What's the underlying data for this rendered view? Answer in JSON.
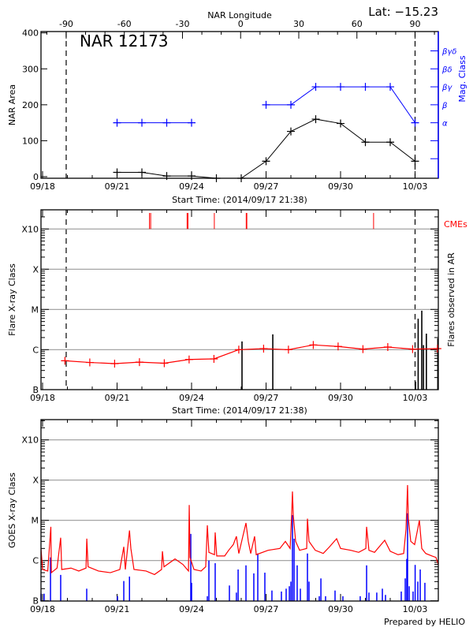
{
  "header": {
    "lat_label": "Lat: −15.23",
    "prepared_by": "Prepared by HELIO"
  },
  "colors": {
    "area": "#000000",
    "mag_class": "#0000ff",
    "flare_mean": "#ff0000",
    "flares": "#000000",
    "cme": "#ff0000",
    "goes_long": "#ff0000",
    "goes_short": "#0000ff",
    "grid": "#999999"
  },
  "chart_data": [
    {
      "type": "line",
      "title": "NAR 12173",
      "xlabel": "Start Time: (2014/09/17 21:38)",
      "x2label": "NAR Longitude",
      "ylabel": "NAR Area",
      "y2label": "Mag. Class",
      "xlim": [
        "2014-09-17 21:38",
        "2014-10-03 22:30"
      ],
      "xticks": [
        {
          "date": "2014-09-18 00:00",
          "label": "09/18"
        },
        {
          "date": "2014-09-21 00:00",
          "label": "09/21"
        },
        {
          "date": "2014-09-24 00:00",
          "label": "09/24"
        },
        {
          "date": "2014-09-27 00:00",
          "label": "09/27"
        },
        {
          "date": "2014-09-30 00:00",
          "label": "09/30"
        },
        {
          "date": "2014-10-03 00:00",
          "label": "10/03"
        }
      ],
      "x2lim": [
        -103,
        102
      ],
      "x2ticks": [
        -90,
        -60,
        -30,
        0,
        30,
        60,
        90
      ],
      "limb_longitudes": [
        -90,
        90
      ],
      "ylim": [
        0,
        400
      ],
      "yticks": [
        0,
        100,
        200,
        300,
        400
      ],
      "y2ticks": [
        {
          "value": 50,
          "label": ""
        },
        {
          "value": 100,
          "label": ""
        },
        {
          "value": 150,
          "label": "α"
        },
        {
          "value": 200,
          "label": "β"
        },
        {
          "value": 250,
          "label": "βγ"
        },
        {
          "value": 300,
          "label": "βδ"
        },
        {
          "value": 350,
          "label": "βγδ"
        }
      ],
      "dates": [
        "2014-09-21 00:00",
        "2014-09-22 00:00",
        "2014-09-23 00:00",
        "2014-09-24 00:00",
        "2014-09-25 00:00",
        "2014-09-26 00:00",
        "2014-09-27 00:00",
        "2014-09-28 00:00",
        "2014-09-29 00:00",
        "2014-09-30 00:00",
        "2014-10-01 00:00",
        "2014-10-02 00:00",
        "2014-10-03 00:00"
      ],
      "area": [
        12,
        12,
        2,
        2,
        -5,
        -5,
        43,
        126,
        160,
        148,
        96,
        96,
        43
      ],
      "mag_class": [
        "α",
        "α",
        "α",
        "α",
        null,
        null,
        "β",
        "β",
        "βγ",
        "βγ",
        "βγ",
        "βγ",
        "α"
      ]
    },
    {
      "type": "line",
      "xlabel": "Start Time: (2014/09/17 21:38)",
      "ylabel": "Flare X-ray Class",
      "y2label": "Flares observed in AR",
      "cme_label": "CMEs",
      "scale": "log",
      "ylim": [
        1e-07,
        0.003
      ],
      "yticks": [
        {
          "value": 1e-07,
          "label": "B"
        },
        {
          "value": 1e-06,
          "label": "C"
        },
        {
          "value": 1e-05,
          "label": "M"
        },
        {
          "value": 0.0001,
          "label": "X"
        },
        {
          "value": 0.001,
          "label": "X10"
        }
      ],
      "grid": true,
      "mean_flux": {
        "dates": [
          "2014-09-18 21:38",
          "2014-09-19 21:38",
          "2014-09-20 21:38",
          "2014-09-21 21:38",
          "2014-09-22 21:38",
          "2014-09-23 21:38",
          "2014-09-24 21:38",
          "2014-09-25 21:38",
          "2014-09-26 21:38",
          "2014-09-27 21:38",
          "2014-09-28 21:38",
          "2014-09-29 21:38",
          "2014-09-30 21:38",
          "2014-10-01 21:38",
          "2014-10-02 21:38",
          "2014-10-03 21:38"
        ],
        "values": [
          5.3e-07,
          4.8e-07,
          4.5e-07,
          4.9e-07,
          4.6e-07,
          5.7e-07,
          5.9e-07,
          1e-06,
          1.06e-06,
          1e-06,
          1.31e-06,
          1.2e-06,
          1.03e-06,
          1.16e-06,
          1.03e-06,
          1.06e-06
        ]
      },
      "flares": [
        [
          "2014-09-26 00:45",
          1.6e-06
        ],
        [
          "2014-09-27 06:30",
          2.4e-06
        ],
        [
          "2014-10-03 00:25",
          1.6e-07
        ],
        [
          "2014-10-03 03:00",
          5.9e-06
        ],
        [
          "2014-10-03 06:30",
          9.3e-06
        ],
        [
          "2014-10-03 08:10",
          1.3e-06
        ],
        [
          "2014-10-03 10:55",
          2.5e-06
        ],
        [
          "2014-10-03 22:00",
          1.9e-06
        ]
      ],
      "cmes": [
        "2014-09-22 07:20",
        "2014-09-22 08:30",
        "2014-09-23 19:40",
        "2014-09-23 20:30",
        "2014-09-24 22:00",
        "2014-09-26 04:50",
        "2014-09-26 05:25",
        "2014-10-01 07:55"
      ]
    },
    {
      "type": "line",
      "ylabel": "GOES X-ray Class",
      "scale": "log",
      "ylim": [
        1e-07,
        0.0032
      ],
      "yticks": [
        {
          "value": 1e-07,
          "label": "B"
        },
        {
          "value": 1e-06,
          "label": "C"
        },
        {
          "value": 1e-05,
          "label": "M"
        },
        {
          "value": 0.0001,
          "label": "X"
        },
        {
          "value": 0.001,
          "label": "X10"
        }
      ],
      "grid": true,
      "long_channel": [
        [
          "2014-09-17 21:38",
          2e-06
        ],
        [
          "2014-09-18 00:00",
          6e-07
        ],
        [
          "2014-09-18 05:00",
          5.5e-07
        ],
        [
          "2014-09-18 08:00",
          6.9e-06
        ],
        [
          "2014-09-18 08:30",
          5e-07
        ],
        [
          "2014-09-18 14:00",
          6.5e-07
        ],
        [
          "2014-09-18 17:30",
          3.7e-06
        ],
        [
          "2014-09-18 18:30",
          6e-07
        ],
        [
          "2014-09-19 03:30",
          6.5e-07
        ],
        [
          "2014-09-19 11:00",
          5.5e-07
        ],
        [
          "2014-09-19 18:00",
          6.5e-07
        ],
        [
          "2014-09-19 18:45",
          3.5e-06
        ],
        [
          "2014-09-19 20:00",
          7e-07
        ],
        [
          "2014-09-20 06:00",
          5.5e-07
        ],
        [
          "2014-09-20 17:30",
          5e-07
        ],
        [
          "2014-09-21 02:40",
          6e-07
        ],
        [
          "2014-09-21 06:30",
          2.2e-06
        ],
        [
          "2014-09-21 08:00",
          6e-07
        ],
        [
          "2014-09-21 12:00",
          5.6e-06
        ],
        [
          "2014-09-21 13:20",
          2e-06
        ],
        [
          "2014-09-21 16:20",
          6e-07
        ],
        [
          "2014-09-22 04:00",
          5.5e-07
        ],
        [
          "2014-09-22 12:10",
          4.5e-07
        ],
        [
          "2014-09-22 19:00",
          6e-07
        ],
        [
          "2014-09-22 19:50",
          1.7e-06
        ],
        [
          "2014-09-22 21:20",
          7e-07
        ],
        [
          "2014-09-23 08:00",
          1.1e-06
        ],
        [
          "2014-09-23 15:40",
          8e-07
        ],
        [
          "2014-09-23 21:00",
          5.5e-07
        ],
        [
          "2014-09-23 21:45",
          2.4e-05
        ],
        [
          "2014-09-23 22:30",
          1.2e-06
        ],
        [
          "2014-09-24 02:20",
          6e-07
        ],
        [
          "2014-09-24 09:10",
          5.5e-07
        ],
        [
          "2014-09-24 13:40",
          7e-07
        ],
        [
          "2014-09-24 14:30",
          2.5e-06
        ],
        [
          "2014-09-24 15:15",
          7.5e-06
        ],
        [
          "2014-09-24 16:45",
          1.6e-06
        ],
        [
          "2014-09-24 22:10",
          1.4e-06
        ],
        [
          "2014-09-24 22:50",
          5e-06
        ],
        [
          "2014-09-25 00:20",
          1.3e-06
        ],
        [
          "2014-09-25 08:00",
          1.3e-06
        ],
        [
          "2014-09-25 11:50",
          1.8e-06
        ],
        [
          "2014-09-25 16:20",
          2.5e-06
        ],
        [
          "2014-09-25 19:20",
          4e-06
        ],
        [
          "2014-09-25 21:40",
          1.5e-06
        ],
        [
          "2014-09-26 04:35",
          8.6e-06
        ],
        [
          "2014-09-26 06:50",
          3e-06
        ],
        [
          "2014-09-26 09:10",
          1.5e-06
        ],
        [
          "2014-09-26 12:55",
          4e-06
        ],
        [
          "2014-09-26 14:30",
          1.4e-06
        ],
        [
          "2014-09-27 01:55",
          1.8e-06
        ],
        [
          "2014-09-27 13:20",
          2e-06
        ],
        [
          "2014-09-27 18:40",
          3e-06
        ],
        [
          "2014-09-27 23:15",
          2e-06
        ],
        [
          "2014-09-28 00:45",
          1.4e-05
        ],
        [
          "2014-09-28 01:30",
          5.2e-05
        ],
        [
          "2014-09-28 02:20",
          1.3e-05
        ],
        [
          "2014-09-28 04:35",
          3e-06
        ],
        [
          "2014-09-28 08:25",
          1.8e-06
        ],
        [
          "2014-09-28 15:15",
          2e-06
        ],
        [
          "2014-09-28 16:00",
          1.1e-05
        ],
        [
          "2014-09-28 17:30",
          3e-06
        ],
        [
          "2014-09-28 23:35",
          1.8e-06
        ],
        [
          "2014-09-29 07:15",
          1.5e-06
        ],
        [
          "2014-09-29 13:20",
          2.2e-06
        ],
        [
          "2014-09-29 20:10",
          3.5e-06
        ],
        [
          "2014-09-30 00:00",
          2e-06
        ],
        [
          "2014-09-30 09:55",
          1.8e-06
        ],
        [
          "2014-09-30 17:30",
          1.6e-06
        ],
        [
          "2014-10-01 00:25",
          2e-06
        ],
        [
          "2014-10-01 01:10",
          6.9e-06
        ],
        [
          "2014-10-01 03:25",
          1.8e-06
        ],
        [
          "2014-10-01 08:50",
          1.6e-06
        ],
        [
          "2014-10-01 18:40",
          3.2e-06
        ],
        [
          "2014-10-02 00:00",
          1.7e-06
        ],
        [
          "2014-10-02 07:35",
          1.4e-06
        ],
        [
          "2014-10-02 13:00",
          1.5e-06
        ],
        [
          "2014-10-02 15:15",
          6e-06
        ],
        [
          "2014-10-02 16:45",
          7.5e-05
        ],
        [
          "2014-10-02 17:30",
          1.1e-05
        ],
        [
          "2014-10-02 19:50",
          3e-06
        ],
        [
          "2014-10-02 23:35",
          2.5e-06
        ],
        [
          "2014-10-03 02:40",
          6.3e-06
        ],
        [
          "2014-10-03 04:10",
          1e-05
        ],
        [
          "2014-10-03 06:30",
          2e-06
        ],
        [
          "2014-10-03 10:20",
          1.5e-06
        ],
        [
          "2014-10-03 16:25",
          1.3e-06
        ],
        [
          "2014-10-03 20:10",
          1.2e-06
        ],
        [
          "2014-10-03 22:30",
          8e-07
        ]
      ],
      "short_channel": [
        [
          "2014-09-17 22:30",
          1.5e-07
        ],
        [
          "2014-09-18 01:30",
          1.5e-07
        ],
        [
          "2014-09-18 07:40",
          1.2e-06
        ],
        [
          "2014-09-18 17:30",
          4.4e-07
        ],
        [
          "2014-09-19 18:40",
          2e-07
        ],
        [
          "2014-09-21 00:25",
          1.3e-07
        ],
        [
          "2014-09-21 06:30",
          3.1e-07
        ],
        [
          "2014-09-21 12:00",
          4e-07
        ],
        [
          "2014-09-23 23:15",
          4.6e-06
        ],
        [
          "2014-09-24 00:00",
          2.8e-07
        ],
        [
          "2014-09-24 15:15",
          1.3e-07
        ],
        [
          "2014-09-24 16:45",
          1e-06
        ],
        [
          "2014-09-24 22:50",
          8.6e-07
        ],
        [
          "2014-09-25 12:35",
          2.4e-07
        ],
        [
          "2014-09-25 19:20",
          1.6e-07
        ],
        [
          "2014-09-25 21:00",
          6e-07
        ],
        [
          "2014-09-26 04:35",
          7.6e-07
        ],
        [
          "2014-09-26 12:10",
          4.8e-07
        ],
        [
          "2014-09-26 16:00",
          1.5e-06
        ],
        [
          "2014-09-26 22:50",
          5e-07
        ],
        [
          "2014-09-27 05:40",
          1.8e-07
        ],
        [
          "2014-09-27 14:50",
          1.7e-07
        ],
        [
          "2014-09-27 19:25",
          2e-07
        ],
        [
          "2014-09-27 22:30",
          2.3e-07
        ],
        [
          "2014-09-28 00:00",
          3e-07
        ],
        [
          "2014-09-28 01:30",
          1.35e-05
        ],
        [
          "2014-09-28 03:05",
          3.5e-06
        ],
        [
          "2014-09-28 06:05",
          7.6e-07
        ],
        [
          "2014-09-28 09:10",
          2e-07
        ],
        [
          "2014-09-28 16:00",
          1.5e-06
        ],
        [
          "2014-09-28 17:30",
          3e-07
        ],
        [
          "2014-09-29 03:25",
          1.3e-07
        ],
        [
          "2014-09-29 05:00",
          3.6e-07
        ],
        [
          "2014-09-29 09:30",
          1.3e-07
        ],
        [
          "2014-09-29 18:40",
          1.8e-07
        ],
        [
          "2014-09-30 02:15",
          1.3e-07
        ],
        [
          "2014-09-30 19:00",
          1.3e-07
        ],
        [
          "2014-10-01 01:10",
          7.6e-07
        ],
        [
          "2014-10-01 03:25",
          1.6e-07
        ],
        [
          "2014-10-01 11:00",
          1.6e-07
        ],
        [
          "2014-10-01 16:25",
          2e-07
        ],
        [
          "2014-10-01 19:25",
          1.4e-07
        ],
        [
          "2014-10-02 10:40",
          1.7e-07
        ],
        [
          "2014-10-02 14:30",
          3.6e-07
        ],
        [
          "2014-10-02 16:00",
          1.1e-06
        ],
        [
          "2014-10-02 16:45",
          1.5e-05
        ],
        [
          "2014-10-02 18:20",
          2.3e-07
        ],
        [
          "2014-10-02 22:05",
          1.7e-07
        ],
        [
          "2014-10-03 00:05",
          7.8e-07
        ],
        [
          "2014-10-03 02:40",
          3e-07
        ],
        [
          "2014-10-03 05:00",
          6e-07
        ],
        [
          "2014-10-03 09:30",
          2.8e-07
        ]
      ]
    }
  ]
}
